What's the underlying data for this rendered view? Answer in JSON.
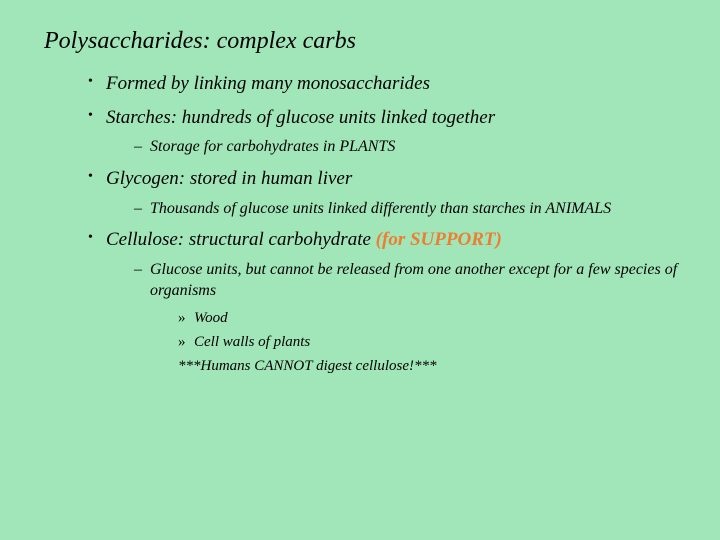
{
  "colors": {
    "background": "#a1e6b9",
    "text": "#000000",
    "highlight": "#ed7d31"
  },
  "typography": {
    "title_fontsize": 24,
    "lvl1_fontsize": 19,
    "lvl2_fontsize": 16,
    "lvl3_fontsize": 15,
    "font_family": "Georgia, serif",
    "font_style": "italic"
  },
  "title": "Polysaccharides: complex carbs",
  "bullets": {
    "b1": "Formed by linking many monosaccharides",
    "b2": "Starches: hundreds of glucose units linked together",
    "b2_1": "Storage for carbohydrates in PLANTS",
    "b3": "Glycogen: stored in human liver",
    "b3_1": "Thousands of glucose units linked differently than starches in ANIMALS",
    "b4_text": "Cellulose: structural carbohydrate",
    "b4_hl": "(for SUPPORT)",
    "b4_1": "Glucose units, but cannot be released from one another except for a few species of organisms",
    "b4_1_a": "Wood",
    "b4_1_b": "Cell walls of plants",
    "b4_1_c": "***Humans CANNOT digest cellulose!***"
  }
}
